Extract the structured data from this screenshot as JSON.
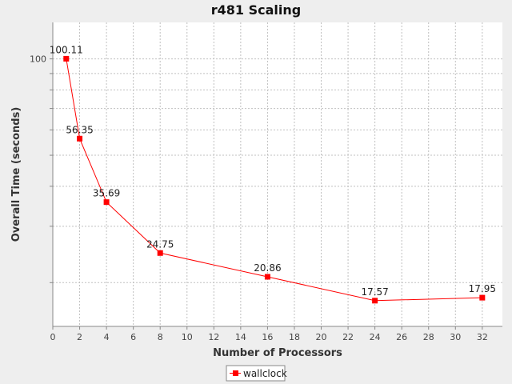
{
  "chart_data": {
    "type": "line",
    "title": "r481 Scaling",
    "xlabel": "Number of Processors",
    "ylabel": "Overall Time (seconds)",
    "x_scale": "linear",
    "y_scale": "log",
    "xlim": [
      0,
      33.5
    ],
    "ylim": [
      14.6,
      130
    ],
    "x_ticks": [
      0,
      2,
      4,
      6,
      8,
      10,
      12,
      14,
      16,
      18,
      20,
      22,
      24,
      26,
      28,
      30,
      32
    ],
    "y_tick_labels": [
      {
        "value": 100,
        "label": "100"
      }
    ],
    "y_minor_ticks": [
      20,
      30,
      40,
      50,
      60,
      70,
      80,
      90,
      100
    ],
    "grid": true,
    "legend_position": "bottom-center",
    "series": [
      {
        "name": "wallclock",
        "color": "#ff0000",
        "marker": "square",
        "x": [
          1,
          2,
          4,
          8,
          16,
          24,
          32
        ],
        "y": [
          100.11,
          56.35,
          35.69,
          24.75,
          20.86,
          17.57,
          17.95
        ],
        "labels": [
          "100.11",
          "56.35",
          "35.69",
          "24.75",
          "20.86",
          "17.57",
          "17.95"
        ]
      }
    ]
  }
}
